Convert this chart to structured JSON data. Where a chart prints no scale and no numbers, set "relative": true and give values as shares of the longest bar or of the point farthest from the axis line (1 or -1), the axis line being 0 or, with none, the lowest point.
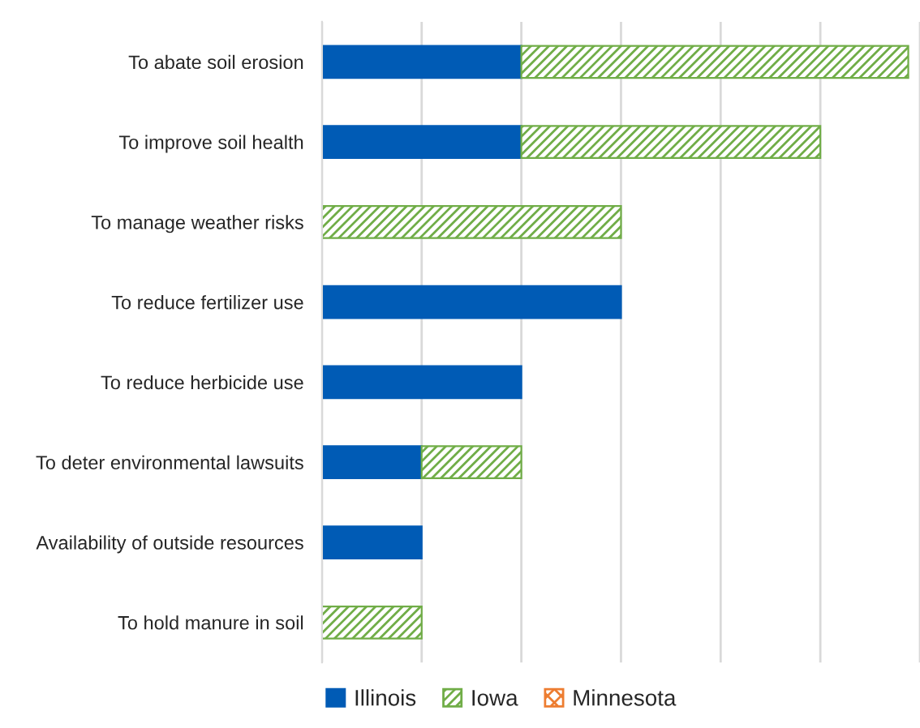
{
  "chart_data": {
    "type": "bar",
    "orientation": "horizontal",
    "stacked": true,
    "relative": true,
    "categories": [
      "To abate soil erosion",
      "To improve soil health",
      "To manage weather risks",
      "To reduce fertilizer use",
      "To reduce herbicide use",
      "To deter environmental lawsuits",
      "Availability of outside resources",
      "To hold manure in soil"
    ],
    "series": [
      {
        "name": "Illinois",
        "color": "#005bb5",
        "values": [
          0.34,
          0.34,
          null,
          0.51,
          0.34,
          0.17,
          0.17,
          null
        ]
      },
      {
        "name": "Iowa",
        "color": "#70ad47",
        "values": [
          0.66,
          0.51,
          0.51,
          null,
          null,
          0.17,
          null,
          0.17
        ]
      },
      {
        "name": "Minnesota",
        "color": "#ed7d31",
        "values": [
          null,
          null,
          null,
          null,
          null,
          null,
          null,
          null
        ]
      }
    ],
    "grid": "x",
    "legend": "bottom"
  }
}
